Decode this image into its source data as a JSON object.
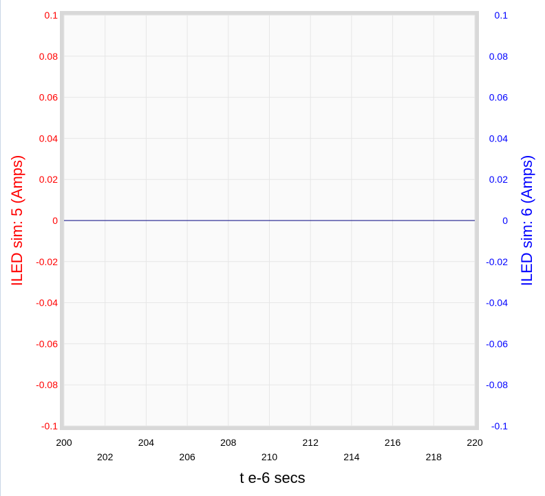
{
  "chart_data": {
    "type": "line",
    "xlabel": "t e-6 secs",
    "ylabel_left": "ILED sim:  5 (Amps)",
    "ylabel_right": "ILED sim:  6 (Amps)",
    "xlim": [
      200,
      220
    ],
    "ylim_left": [
      -0.1,
      0.1
    ],
    "ylim_right": [
      -0.1,
      0.1
    ],
    "x_ticks": [
      "200",
      "202",
      "204",
      "206",
      "208",
      "210",
      "212",
      "214",
      "216",
      "218",
      "220"
    ],
    "y_ticks_left": [
      "0.1",
      "0.08",
      "0.06",
      "0.04",
      "0.02",
      "0",
      "-0.02",
      "-0.04",
      "-0.06",
      "-0.08",
      "-0.1"
    ],
    "y_ticks_right": [
      "0.1",
      "0.08",
      "0.06",
      "0.04",
      "0.02",
      "0",
      "-0.02",
      "-0.04",
      "-0.06",
      "-0.08",
      "-0.1"
    ],
    "grid": true,
    "colors": {
      "left_axis": "#ff0000",
      "right_axis": "#0000ff",
      "trace": "#000080",
      "plot_border": "#d8d8d8",
      "grid": "#e6e6e6"
    },
    "series": [
      {
        "axis": "left",
        "x": [
          200,
          220
        ],
        "y": [
          0,
          0
        ]
      },
      {
        "axis": "right",
        "x": [
          200,
          220
        ],
        "y": [
          0,
          0
        ]
      }
    ]
  }
}
